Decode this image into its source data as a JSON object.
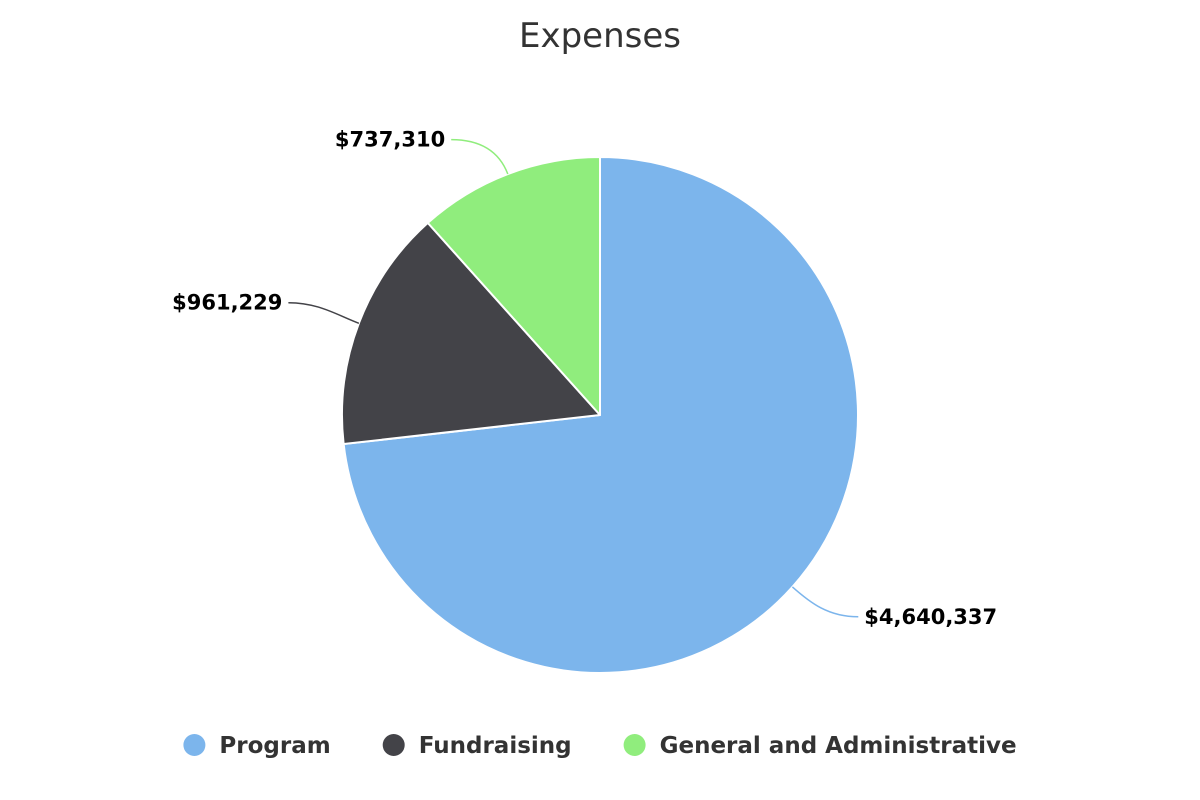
{
  "chart_data": {
    "type": "pie",
    "title": "Expenses",
    "categories": [
      "Program",
      "Fundraising",
      "General and Administrative"
    ],
    "values": [
      4640337,
      961229,
      737310
    ],
    "value_labels": [
      "$4,640,337",
      "$961,229",
      "$737,310"
    ],
    "colors": [
      "#7cb5ec",
      "#434348",
      "#90ed7d"
    ],
    "start_angle_deg": 0,
    "direction": "clockwise",
    "legend": {
      "placement": "bottom-center",
      "items": [
        "Program",
        "Fundraising",
        "General and Administrative"
      ]
    }
  }
}
